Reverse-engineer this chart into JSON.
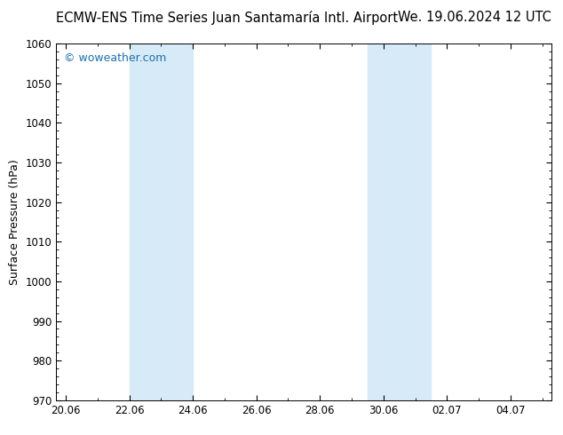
{
  "title_left": "ECMW-ENS Time Series Juan Santamaría Intl. Airport",
  "title_right": "We. 19.06.2024 12 UTC",
  "ylabel": "Surface Pressure (hPa)",
  "ylim_bottom": 970,
  "ylim_top": 1060,
  "yticks": [
    970,
    980,
    990,
    1000,
    1010,
    1020,
    1030,
    1040,
    1050,
    1060
  ],
  "xtick_labels": [
    "20.06",
    "22.06",
    "24.06",
    "26.06",
    "28.06",
    "30.06",
    "02.07",
    "04.07"
  ],
  "xtick_positions": [
    0,
    2,
    4,
    6,
    8,
    10,
    12,
    14
  ],
  "xlim_start": -0.3,
  "xlim_end": 15.3,
  "shaded_bands": [
    {
      "x_start": 2,
      "x_end": 4
    },
    {
      "x_start": 9.5,
      "x_end": 11.5
    }
  ],
  "shaded_color": "#d6eaf8",
  "watermark_text": "© woweather.com",
  "watermark_color": "#1a70b0",
  "background_color": "#ffffff",
  "plot_bg_color": "#ffffff",
  "title_fontsize": 10.5,
  "title_color": "#000000",
  "axis_color": "#000000",
  "tick_color": "#000000",
  "ylabel_fontsize": 9,
  "watermark_fontsize": 9
}
